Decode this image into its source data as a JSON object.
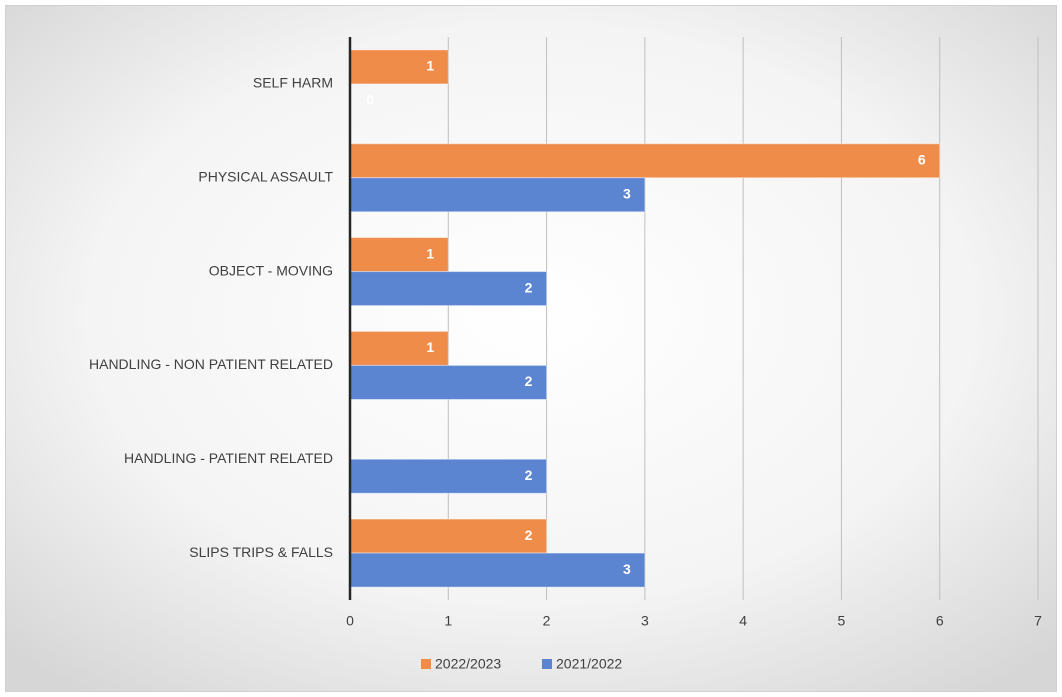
{
  "chart_data": {
    "type": "bar",
    "orientation": "horizontal",
    "categories": [
      "SELF HARM",
      "PHYSICAL ASSAULT",
      "OBJECT - MOVING",
      "HANDLING - NON PATIENT RELATED",
      "HANDLING - PATIENT RELATED",
      "SLIPS TRIPS & FALLS"
    ],
    "series": [
      {
        "name": "2022/2023",
        "color": "#f08c4a",
        "values": [
          1,
          6,
          1,
          1,
          null,
          2
        ]
      },
      {
        "name": "2021/2022",
        "color": "#5b84d1",
        "values": [
          0,
          3,
          2,
          2,
          2,
          3
        ]
      }
    ],
    "xlim": [
      0,
      7
    ],
    "xticks": [
      0,
      1,
      2,
      3,
      4,
      5,
      6,
      7
    ],
    "grid": true,
    "legend": "bottom"
  }
}
